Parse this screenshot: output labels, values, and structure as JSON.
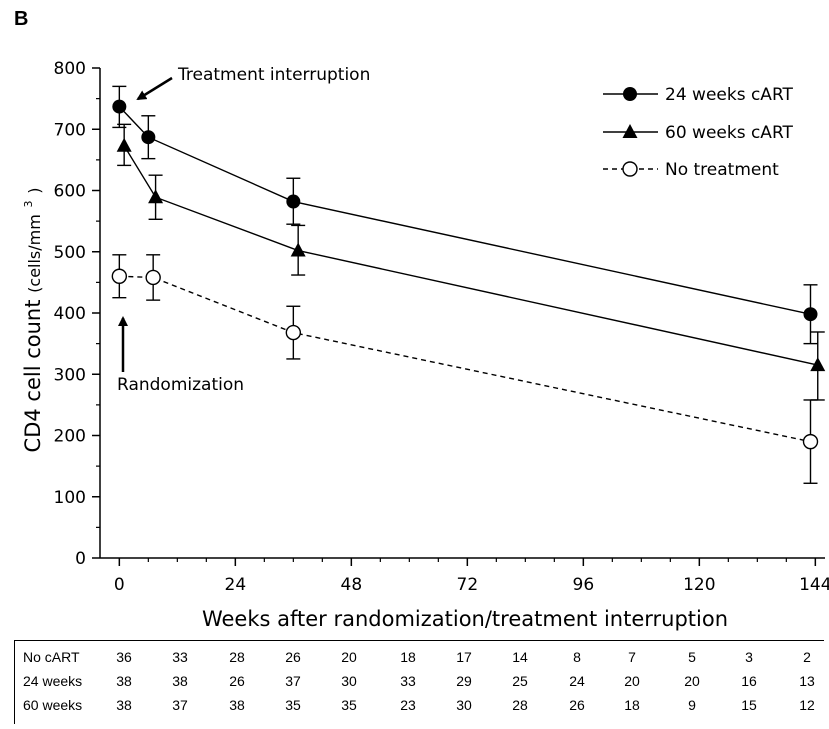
{
  "panel_label": "B",
  "chart_data": {
    "type": "line",
    "title": "",
    "xlabel": "Weeks after randomization/treatment interruption",
    "ylabel": "CD4 cell count",
    "ylabel_unit": "(cells/mm",
    "ylabel_unit_sup": "3",
    "ylabel_unit_close": ")",
    "xlim": [
      -4,
      146
    ],
    "ylim": [
      0,
      800
    ],
    "xticks": [
      0,
      24,
      48,
      72,
      96,
      120,
      144
    ],
    "xtick_labels": [
      "0",
      "24",
      "48",
      "72",
      "96",
      "120",
      "144"
    ],
    "yticks": [
      0,
      100,
      200,
      300,
      400,
      500,
      600,
      700,
      800
    ],
    "ytick_labels": [
      "0",
      "100",
      "200",
      "300",
      "400",
      "500",
      "600",
      "700",
      "800"
    ],
    "grid": false,
    "legend_position": "top-right",
    "series": [
      {
        "name": "24 weeks cART",
        "marker": "filled-circle",
        "line": "solid",
        "x": [
          0,
          6,
          36,
          143
        ],
        "y": [
          737,
          687,
          582,
          398
        ],
        "err_low": [
          703,
          652,
          545,
          350
        ],
        "err_high": [
          770,
          722,
          620,
          446
        ]
      },
      {
        "name": "60 weeks cART",
        "marker": "filled-triangle",
        "line": "solid",
        "x": [
          1,
          7.5,
          37,
          144.5
        ],
        "y": [
          673,
          589,
          502,
          315
        ],
        "err_low": [
          641,
          553,
          462,
          258
        ],
        "err_high": [
          708,
          625,
          543,
          369
        ]
      },
      {
        "name": "No treatment",
        "marker": "open-circle",
        "line": "dashed",
        "x": [
          0,
          7,
          36,
          143
        ],
        "y": [
          460,
          458,
          368,
          190
        ],
        "err_low": [
          425,
          421,
          325,
          122
        ],
        "err_high": [
          495,
          495,
          411,
          258
        ]
      }
    ],
    "annotations": [
      {
        "text": "Treatment interruption"
      },
      {
        "text": "Randomization"
      }
    ]
  },
  "risk_table": {
    "rows": [
      {
        "label": "No cART",
        "values": [
          "36",
          "33",
          "28",
          "26",
          "20",
          "18",
          "17",
          "14",
          "8",
          "7",
          "5",
          "3",
          "2"
        ]
      },
      {
        "label": "24 weeks",
        "values": [
          "38",
          "38",
          "26",
          "37",
          "30",
          "33",
          "29",
          "25",
          "24",
          "20",
          "20",
          "16",
          "13"
        ]
      },
      {
        "label": "60 weeks",
        "values": [
          "38",
          "37",
          "38",
          "35",
          "35",
          "23",
          "30",
          "28",
          "26",
          "18",
          "9",
          "15",
          "12"
        ]
      }
    ]
  }
}
